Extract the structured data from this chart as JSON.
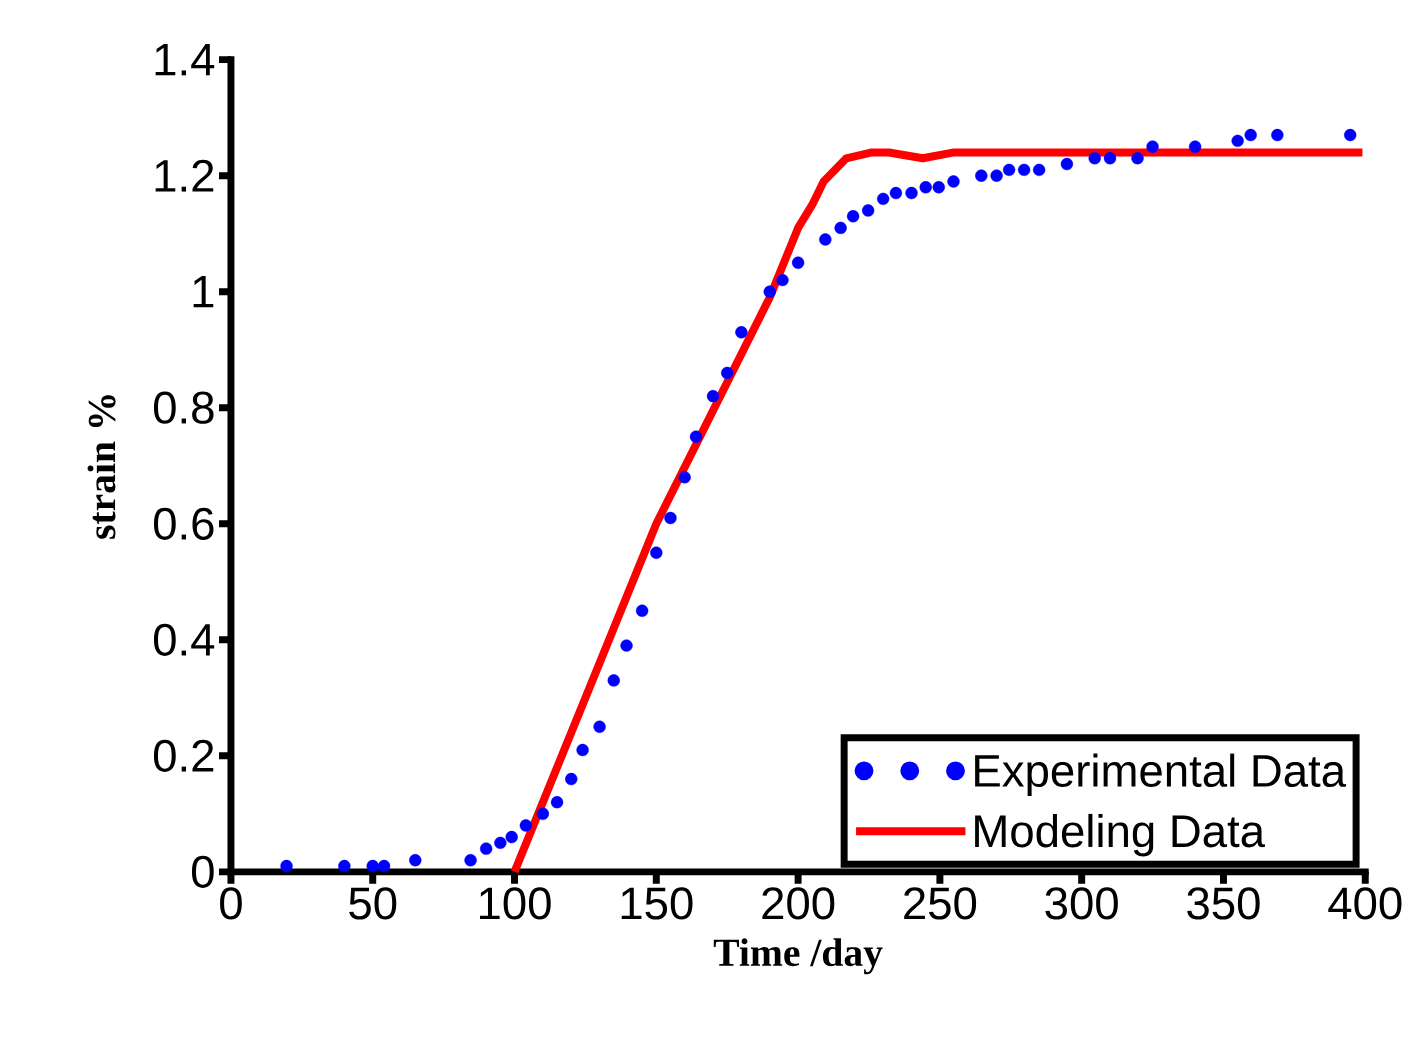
{
  "chart_data": {
    "type": "line",
    "xlabel": "Time /day",
    "ylabel": "strain %",
    "xlim": [
      0,
      400
    ],
    "ylim": [
      0,
      1.4
    ],
    "xticks": [
      0,
      50,
      100,
      150,
      200,
      250,
      300,
      350,
      400
    ],
    "yticks": [
      0,
      0.2,
      0.4,
      0.6,
      0.8,
      1,
      1.2,
      1.4
    ],
    "grid": false,
    "legend": "bottom right",
    "marker": "circle",
    "series": [
      {
        "name": "Experimental Data",
        "type": "scatter",
        "color": "#0000ff",
        "x": [
          19.6,
          40,
          50,
          54,
          65,
          84.5,
          90,
          95,
          99,
          104,
          110,
          115,
          120,
          124,
          130,
          135,
          139.5,
          145,
          150,
          155,
          160,
          164,
          170,
          175,
          180,
          190,
          194.5,
          200,
          209.6,
          215,
          219.4,
          224.7,
          230,
          234.5,
          240,
          245,
          249.6,
          254.8,
          264.6,
          270,
          274.4,
          279.7,
          285,
          294.8,
          304.6,
          310,
          319.7,
          325,
          340,
          355,
          359.6,
          369,
          394.7
        ],
        "values": [
          0.01,
          0.01,
          0.01,
          0.01,
          0.02,
          0.02,
          0.04,
          0.05,
          0.06,
          0.08,
          0.1,
          0.12,
          0.16,
          0.21,
          0.25,
          0.33,
          0.39,
          0.45,
          0.55,
          0.61,
          0.68,
          0.75,
          0.82,
          0.86,
          0.93,
          1.0,
          1.02,
          1.05,
          1.09,
          1.11,
          1.13,
          1.14,
          1.16,
          1.17,
          1.17,
          1.18,
          1.18,
          1.19,
          1.2,
          1.2,
          1.21,
          1.21,
          1.21,
          1.22,
          1.23,
          1.23,
          1.23,
          1.25,
          1.25,
          1.26,
          1.27,
          1.27,
          1.27
        ]
      },
      {
        "name": "Modeling Data",
        "type": "line",
        "marker": "none",
        "line_style": "solid",
        "color": "#ff0000",
        "x": [
          100,
          150,
          190,
          200,
          205,
          209,
          217,
          226,
          232,
          244,
          255,
          261,
          399
        ],
        "values": [
          0,
          0.6,
          0.99,
          1.11,
          1.15,
          1.19,
          1.23,
          1.24,
          1.24,
          1.23,
          1.24,
          1.24,
          1.24
        ]
      }
    ]
  }
}
